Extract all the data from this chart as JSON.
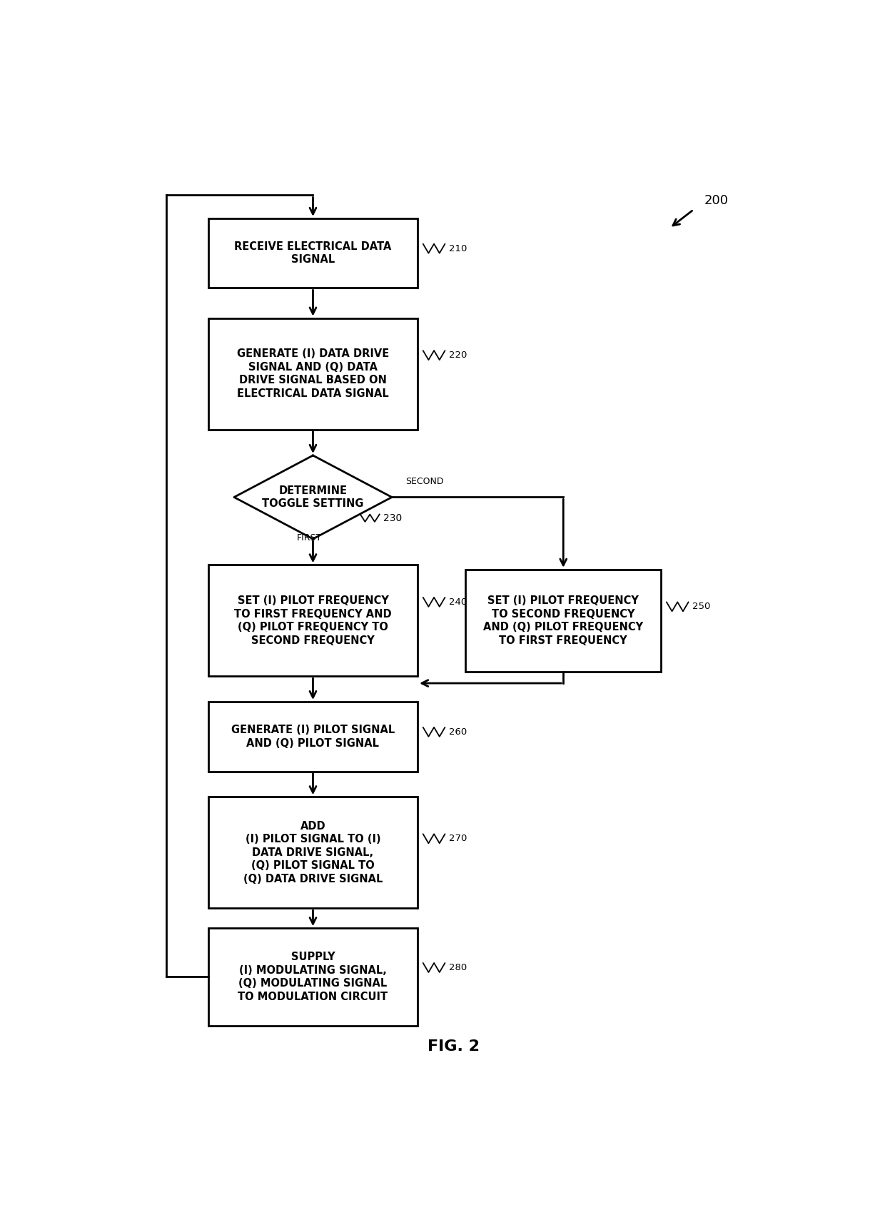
{
  "bg_color": "#ffffff",
  "fig_width": 12.4,
  "fig_height": 16.88,
  "title": "FIG. 2",
  "diagram_label": "200",
  "labels": {
    "b210": "RECEIVE ELECTRICAL DATA\nSIGNAL",
    "b220": "GENERATE (I) DATA DRIVE\nSIGNAL AND (Q) DATA\nDRIVE SIGNAL BASED ON\nELECTRICAL DATA SIGNAL",
    "b230": "DETERMINE\nTOGGLE SETTING",
    "b240": "SET (I) PILOT FREQUENCY\nTO FIRST FREQUENCY AND\n(Q) PILOT FREQUENCY TO\nSECOND FREQUENCY",
    "b250": "SET (I) PILOT FREQUENCY\nTO SECOND FREQUENCY\nAND (Q) PILOT FREQUENCY\nTO FIRST FREQUENCY",
    "b260": "GENERATE (I) PILOT SIGNAL\nAND (Q) PILOT SIGNAL",
    "b270": "ADD\n(I) PILOT SIGNAL TO (I)\nDATA DRIVE SIGNAL,\n(Q) PILOT SIGNAL TO\n(Q) DATA DRIVE SIGNAL",
    "b280": "SUPPLY\n(I) MODULATING SIGNAL,\n(Q) MODULATING SIGNAL\nTO MODULATION CIRCUIT"
  },
  "refs": {
    "b210": "210",
    "b220": "220",
    "b230": "230",
    "b240": "240",
    "b250": "250",
    "b260": "260",
    "b270": "270",
    "b280": "280"
  },
  "font_size": 10.5,
  "title_font_size": 16
}
